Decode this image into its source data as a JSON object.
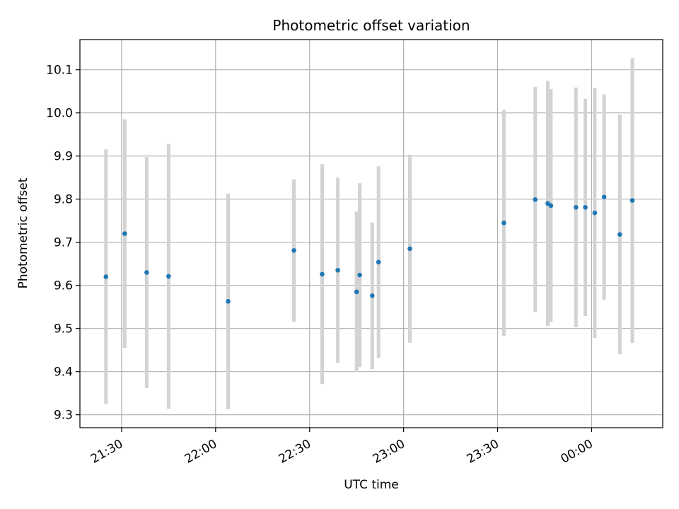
{
  "chart_data": {
    "type": "scatter",
    "title": "Photometric offset variation",
    "xlabel": "UTC time",
    "ylabel": "Photometric offset",
    "x_ticks": [
      "21:30",
      "22:00",
      "22:30",
      "23:00",
      "23:30",
      "00:00"
    ],
    "x_tick_minutes": [
      0,
      30,
      60,
      90,
      120,
      150
    ],
    "xlim_minutes": [
      -13.3,
      172.7
    ],
    "y_ticks": [
      "9.3",
      "9.4",
      "9.5",
      "9.6",
      "9.7",
      "9.8",
      "9.9",
      "10.0",
      "10.1"
    ],
    "ylim": [
      9.27,
      10.17
    ],
    "grid": true,
    "point_color": "#1f77b4",
    "errorbar_color": "#d3d3d3",
    "points": [
      {
        "t": "21:25",
        "y": 9.62,
        "err": 0.295
      },
      {
        "t": "21:31",
        "y": 9.72,
        "err": 0.265
      },
      {
        "t": "21:38",
        "y": 9.63,
        "err": 0.268
      },
      {
        "t": "21:45",
        "y": 9.621,
        "err": 0.307
      },
      {
        "t": "22:04",
        "y": 9.563,
        "err": 0.25
      },
      {
        "t": "22:25",
        "y": 9.681,
        "err": 0.165
      },
      {
        "t": "22:34",
        "y": 9.626,
        "err": 0.255
      },
      {
        "t": "22:39",
        "y": 9.635,
        "err": 0.215
      },
      {
        "t": "22:45",
        "y": 9.585,
        "err": 0.186
      },
      {
        "t": "22:46",
        "y": 9.624,
        "err": 0.213
      },
      {
        "t": "22:50",
        "y": 9.576,
        "err": 0.17
      },
      {
        "t": "22:52",
        "y": 9.654,
        "err": 0.222
      },
      {
        "t": "23:02",
        "y": 9.685,
        "err": 0.218
      },
      {
        "t": "23:32",
        "y": 9.745,
        "err": 0.262
      },
      {
        "t": "23:42",
        "y": 9.799,
        "err": 0.261
      },
      {
        "t": "23:46",
        "y": 9.79,
        "err": 0.284
      },
      {
        "t": "23:47",
        "y": 9.785,
        "err": 0.27
      },
      {
        "t": "23:55",
        "y": 9.781,
        "err": 0.278
      },
      {
        "t": "23:58",
        "y": 9.781,
        "err": 0.252
      },
      {
        "t": "00:01",
        "y": 9.768,
        "err": 0.29
      },
      {
        "t": "00:04",
        "y": 9.805,
        "err": 0.238
      },
      {
        "t": "00:09",
        "y": 9.718,
        "err": 0.278
      },
      {
        "t": "00:13",
        "y": 9.797,
        "err": 0.33
      }
    ]
  }
}
